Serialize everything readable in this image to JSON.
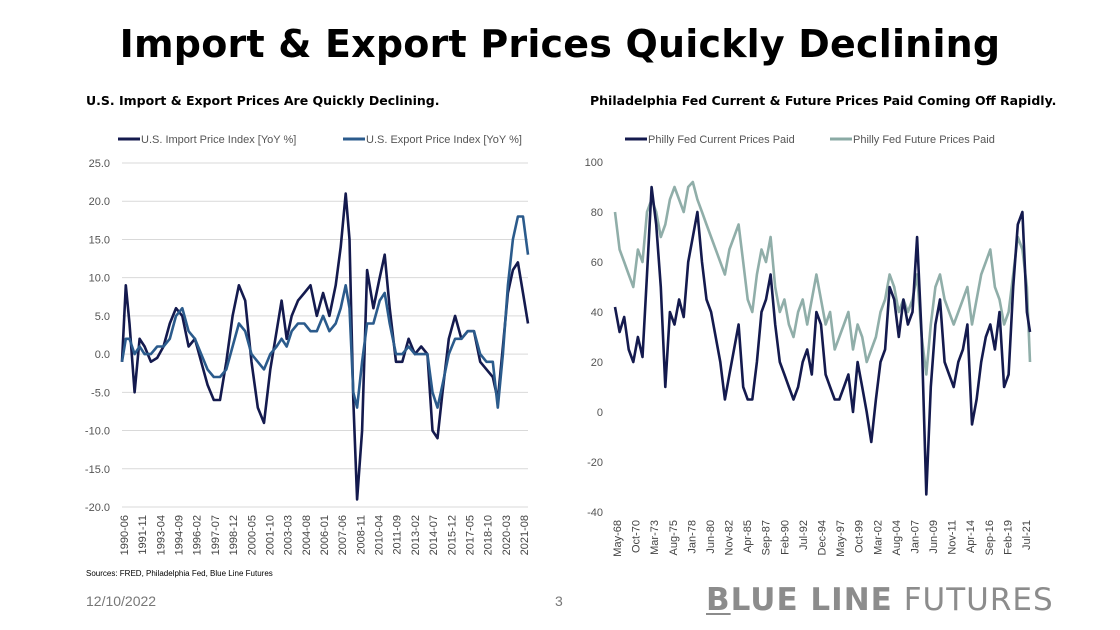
{
  "page": {
    "title": "Import & Export Prices Quickly Declining",
    "sources": "Sources: FRED, Philadelphia Fed, Blue Line Futures",
    "date": "12/10/2022",
    "page_number": "3",
    "logo": {
      "bold_first": "B",
      "bold_rest": "LUE LINE",
      "light": "FUTURES"
    }
  },
  "chart_data": [
    {
      "type": "line",
      "title": "U.S. Import & Export Prices Are Quickly Declining.",
      "xlabel": "",
      "ylabel": "",
      "ylim": [
        -20,
        25
      ],
      "yticks": [
        "25.0",
        "20.0",
        "15.0",
        "10.0",
        "5.0",
        "0.0",
        "-5.0",
        "-10.0",
        "-15.0",
        "-20.0"
      ],
      "xticks": [
        "1990-06",
        "1991-11",
        "1993-04",
        "1994-09",
        "1996-02",
        "1997-07",
        "1998-12",
        "2000-05",
        "2001-10",
        "2003-03",
        "2004-08",
        "2006-01",
        "2007-06",
        "2008-11",
        "2010-04",
        "2011-09",
        "2013-02",
        "2014-07",
        "2015-12",
        "2017-05",
        "2018-10",
        "2020-03",
        "2021-08"
      ],
      "grid": true,
      "legend": "top",
      "x": [
        1990.5,
        1990.8,
        1991.1,
        1991.5,
        1991.9,
        1992.3,
        1992.8,
        1993.3,
        1993.8,
        1994.3,
        1994.8,
        1995.3,
        1995.8,
        1996.3,
        1996.8,
        1997.3,
        1997.8,
        1998.3,
        1998.8,
        1999.3,
        1999.8,
        2000.3,
        2000.8,
        2001.3,
        2001.8,
        2002.3,
        2002.8,
        2003.2,
        2003.6,
        2004.0,
        2004.5,
        2005.0,
        2005.5,
        2006.0,
        2006.5,
        2007.0,
        2007.5,
        2007.9,
        2008.3,
        2008.6,
        2008.9,
        2009.2,
        2009.6,
        2010.0,
        2010.5,
        2011.0,
        2011.4,
        2011.8,
        2012.3,
        2012.8,
        2013.3,
        2013.8,
        2014.3,
        2014.8,
        2015.2,
        2015.6,
        2016.0,
        2016.5,
        2017.0,
        2017.5,
        2018.0,
        2018.5,
        2019.0,
        2019.5,
        2020.0,
        2020.4,
        2020.8,
        2021.2,
        2021.6,
        2022.0,
        2022.4,
        2022.8
      ],
      "series": [
        {
          "name": "U.S. Import Price Index [YoY %]",
          "color": "#141a4e",
          "values": [
            -1,
            9,
            4,
            -5,
            2,
            1,
            -1,
            -0.5,
            1,
            4,
            6,
            5,
            1,
            2,
            -1,
            -4,
            -6,
            -6,
            -1,
            5,
            9,
            7,
            -1,
            -7,
            -9,
            -2,
            3,
            7,
            2,
            5,
            7,
            8,
            9,
            5,
            8,
            5,
            9,
            14,
            21,
            15,
            -6,
            -19,
            -10,
            11,
            6,
            10,
            13,
            6,
            -1,
            -1,
            2,
            0,
            1,
            0,
            -10,
            -11,
            -5,
            2,
            5,
            2,
            3,
            3,
            -1,
            -2,
            -3,
            -6,
            1,
            8,
            11,
            12,
            8,
            4
          ]
        },
        {
          "name": "U.S. Export Price Index [YoY %]",
          "color": "#2b5b8c",
          "values": [
            -1,
            2,
            2,
            0,
            1,
            0,
            0,
            1,
            1,
            2,
            5,
            6,
            3,
            2,
            0,
            -2,
            -3,
            -3,
            -2,
            1,
            4,
            3,
            0,
            -1,
            -2,
            0,
            1,
            2,
            1,
            3,
            4,
            4,
            3,
            3,
            5,
            3,
            4,
            6,
            9,
            6,
            -5,
            -7,
            -1,
            4,
            4,
            7,
            8,
            4,
            0,
            0,
            1,
            0,
            0,
            0,
            -5,
            -7,
            -4,
            0,
            2,
            2,
            3,
            3,
            0,
            -1,
            -1,
            -7,
            0,
            9,
            15,
            18,
            18,
            13
          ]
        }
      ]
    },
    {
      "type": "line",
      "title": "Philadelphia Fed Current & Future Prices Paid Coming Off Rapidly.",
      "xlabel": "",
      "ylabel": "",
      "ylim": [
        -40,
        100
      ],
      "yticks": [
        "100",
        "80",
        "60",
        "40",
        "20",
        "0",
        "-20",
        "-40"
      ],
      "xticks": [
        "May-68",
        "Oct-70",
        "Mar-73",
        "Aug-75",
        "Jan-78",
        "Jun-80",
        "Nov-82",
        "Apr-85",
        "Sep-87",
        "Feb-90",
        "Jul-92",
        "Dec-94",
        "May-97",
        "Oct-99",
        "Mar-02",
        "Aug-04",
        "Jan-07",
        "Jun-09",
        "Nov-11",
        "Apr-14",
        "Sep-16",
        "Feb-19",
        "Jul-21"
      ],
      "grid": false,
      "legend": "top",
      "x": [
        1968.4,
        1969.0,
        1969.6,
        1970.2,
        1970.8,
        1971.4,
        1972.0,
        1972.6,
        1973.2,
        1973.8,
        1974.4,
        1975.0,
        1975.6,
        1976.2,
        1976.8,
        1977.4,
        1978.0,
        1978.6,
        1979.2,
        1979.8,
        1980.4,
        1981.0,
        1981.6,
        1982.2,
        1982.8,
        1983.4,
        1984.0,
        1984.6,
        1985.2,
        1985.8,
        1986.4,
        1987.0,
        1987.6,
        1988.2,
        1988.8,
        1989.4,
        1990.0,
        1990.6,
        1991.2,
        1991.8,
        1992.4,
        1993.0,
        1993.6,
        1994.2,
        1994.8,
        1995.4,
        1996.0,
        1996.6,
        1997.2,
        1997.8,
        1998.4,
        1999.0,
        1999.6,
        2000.2,
        2000.8,
        2001.4,
        2002.0,
        2002.6,
        2003.2,
        2003.8,
        2004.4,
        2005.0,
        2005.6,
        2006.2,
        2006.8,
        2007.4,
        2008.0,
        2008.6,
        2009.2,
        2009.8,
        2010.4,
        2011.0,
        2011.6,
        2012.2,
        2012.8,
        2013.4,
        2014.0,
        2014.6,
        2015.2,
        2015.8,
        2016.4,
        2017.0,
        2017.6,
        2018.2,
        2018.8,
        2019.4,
        2020.0,
        2020.6,
        2021.2,
        2021.8,
        2022.4,
        2022.8
      ],
      "series": [
        {
          "name": "Philly Fed Current Prices Paid",
          "color": "#141a4e",
          "values": [
            42,
            32,
            38,
            25,
            20,
            30,
            22,
            55,
            90,
            75,
            50,
            10,
            40,
            35,
            45,
            38,
            60,
            70,
            80,
            60,
            45,
            40,
            30,
            20,
            5,
            15,
            25,
            35,
            10,
            5,
            5,
            20,
            40,
            45,
            55,
            35,
            20,
            15,
            10,
            5,
            10,
            20,
            25,
            15,
            40,
            35,
            15,
            10,
            5,
            5,
            10,
            15,
            0,
            20,
            10,
            0,
            -12,
            5,
            20,
            25,
            50,
            45,
            30,
            45,
            35,
            40,
            70,
            30,
            -33,
            10,
            35,
            45,
            20,
            15,
            10,
            20,
            25,
            35,
            -5,
            5,
            20,
            30,
            35,
            25,
            40,
            10,
            15,
            50,
            75,
            80,
            40,
            32
          ]
        },
        {
          "name": "Philly Fed Future Prices Paid",
          "color": "#8aaaa4",
          "values": [
            80,
            65,
            60,
            55,
            50,
            65,
            60,
            80,
            85,
            80,
            70,
            75,
            85,
            90,
            85,
            80,
            90,
            92,
            85,
            80,
            75,
            70,
            65,
            60,
            55,
            65,
            70,
            75,
            60,
            45,
            40,
            55,
            65,
            60,
            70,
            50,
            40,
            45,
            35,
            30,
            40,
            45,
            35,
            45,
            55,
            45,
            35,
            40,
            25,
            30,
            35,
            40,
            25,
            35,
            30,
            20,
            25,
            30,
            40,
            45,
            55,
            50,
            40,
            45,
            40,
            45,
            55,
            30,
            15,
            35,
            50,
            55,
            45,
            40,
            35,
            40,
            45,
            50,
            35,
            45,
            55,
            60,
            65,
            50,
            45,
            35,
            40,
            55,
            70,
            65,
            50,
            20
          ]
        }
      ]
    }
  ]
}
